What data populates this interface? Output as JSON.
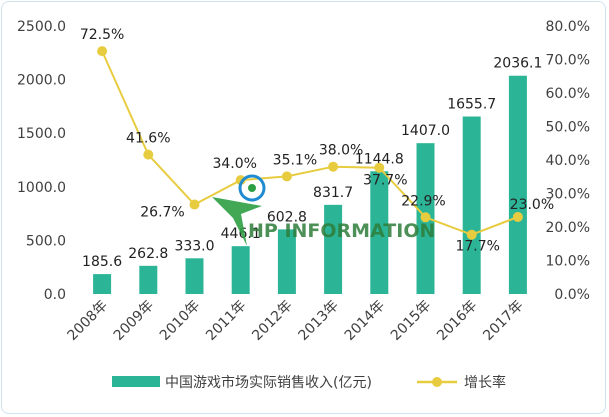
{
  "chart_data": {
    "type": "bar",
    "categories": [
      "2008年",
      "2009年",
      "2010年",
      "2011年",
      "2012年",
      "2013年",
      "2014年",
      "2015年",
      "2016年",
      "2017年"
    ],
    "bar_series": {
      "name": "中国游戏市场实际销售收入(亿元)",
      "values": [
        185.6,
        262.8,
        333.0,
        446.1,
        602.8,
        831.7,
        1144.8,
        1407.0,
        1655.7,
        2036.1
      ],
      "labels": [
        "185.6",
        "262.8",
        "333.0",
        "446.1",
        "602.8",
        "831.7",
        "1144.8",
        "1407.0",
        "1655.7",
        "2036.1"
      ],
      "color": "#2bb596"
    },
    "line_series": {
      "name": "增长率",
      "values": [
        72.5,
        41.6,
        26.7,
        34.0,
        35.1,
        38.0,
        37.7,
        22.9,
        17.7,
        23.0
      ],
      "labels": [
        "72.5%",
        "41.6%",
        "26.7%",
        "34.0%",
        "35.1%",
        "38.0%",
        "37.7%",
        "22.9%",
        "17.7%",
        "23.0%"
      ],
      "color": "#e8cc40"
    },
    "y_left": {
      "ylim": [
        0,
        2500
      ],
      "ticks": [
        0,
        500,
        1000,
        1500,
        2000,
        2500
      ],
      "tick_labels": [
        "0.0",
        "500.0",
        "1000.0",
        "1500.0",
        "2000.0",
        "2500.0"
      ]
    },
    "y_right": {
      "ylim": [
        0,
        80
      ],
      "ticks": [
        0,
        10,
        20,
        30,
        40,
        50,
        60,
        70,
        80
      ],
      "tick_labels": [
        "0.0%",
        "10.0%",
        "20.0%",
        "30.0%",
        "40.0%",
        "50.0%",
        "60.0%",
        "70.0%",
        "80.0%"
      ]
    },
    "legend_position": "bottom"
  },
  "legend": {
    "bar_label": "中国游戏市场实际销售收入(亿元)",
    "line_label": "增长率"
  },
  "watermark": {
    "text": "HP INFORMATION"
  }
}
